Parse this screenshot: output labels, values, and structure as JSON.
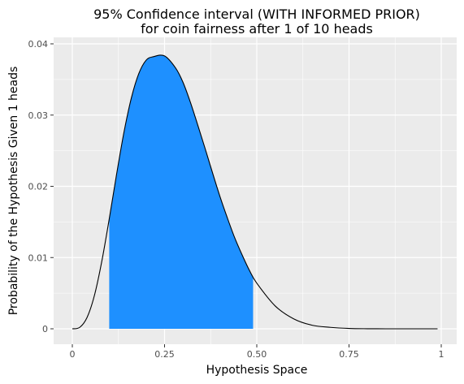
{
  "chart_data": {
    "type": "area",
    "title": [
      "95% Confidence interval (WITH INFORMED PRIOR)",
      "for coin fairness after 1 of 10 heads"
    ],
    "xlabel": "Hypothesis Space",
    "ylabel": "Probability of the Hypothesis Given 1 heads",
    "xlim": [
      0,
      1
    ],
    "ylim": [
      0,
      0.04
    ],
    "x_ticks": [
      0,
      0.25,
      0.5,
      0.75,
      1
    ],
    "x_tick_labels": [
      "0",
      "0.25",
      "0.50",
      "0.75",
      "1"
    ],
    "y_ticks": [
      0,
      0.01,
      0.02,
      0.03,
      0.04
    ],
    "y_tick_labels": [
      "0",
      "0.01",
      "0.02",
      "0.03",
      "0.04"
    ],
    "grid": true,
    "series": [
      {
        "x": [
          0,
          0.02,
          0.04,
          0.06,
          0.08,
          0.1,
          0.12,
          0.14,
          0.16,
          0.18,
          0.2,
          0.22,
          0.25,
          0.28,
          0.3,
          0.32,
          0.34,
          0.36,
          0.38,
          0.4,
          0.42,
          0.44,
          0.46,
          0.48,
          0.5,
          0.55,
          0.6,
          0.65,
          0.7,
          0.75,
          0.8,
          0.85,
          0.9,
          0.95,
          0.99
        ],
        "y": [
          0,
          0.0002,
          0.0016,
          0.0047,
          0.0095,
          0.0154,
          0.0217,
          0.0276,
          0.0324,
          0.0358,
          0.0377,
          0.0382,
          0.0383,
          0.0366,
          0.0346,
          0.0318,
          0.0286,
          0.0253,
          0.0219,
          0.0186,
          0.0156,
          0.0128,
          0.0104,
          0.0082,
          0.0064,
          0.0032,
          0.0014,
          0.0005,
          0.0002,
          5e-05,
          1e-05,
          0,
          0,
          0,
          0
        ]
      }
    ],
    "shaded_interval": {
      "lower": 0.1,
      "upper": 0.49,
      "color": "#1e90ff"
    },
    "colors": {
      "panel": "#ebebeb",
      "grid": "#ffffff",
      "curve": "#000000",
      "fill": "#1e90ff",
      "tick_text": "#4d4d4d"
    }
  }
}
